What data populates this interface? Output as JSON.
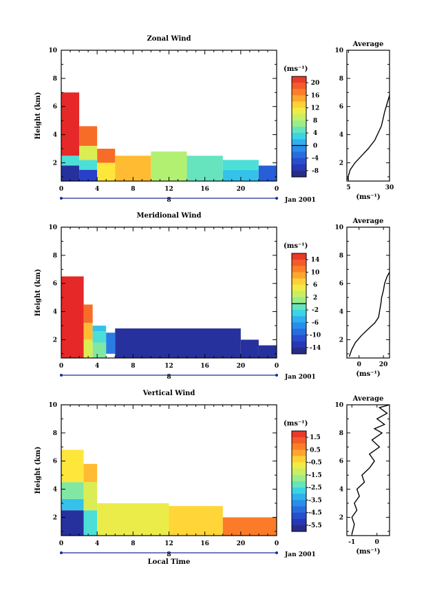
{
  "chart_data": [
    {
      "type": "heatmap",
      "title": "Zonal Wind",
      "ylabel": "Height (km)",
      "xlabel": "",
      "xlim": [
        0,
        24
      ],
      "ylim": [
        0.7,
        10
      ],
      "xticks": [
        "0",
        "4",
        "8",
        "12",
        "16",
        "20",
        "0"
      ],
      "yticks": [
        "2",
        "4",
        "6",
        "8",
        "10"
      ],
      "date_tick": "8",
      "date_label": "Jan 2001",
      "colorbar": {
        "unit": "(ms⁻¹)",
        "ticks": [
          "20",
          "16",
          "12",
          "8",
          "4",
          "0",
          "-4",
          "-8"
        ],
        "min": -10,
        "max": 22,
        "contour": 0
      },
      "field": {
        "segments": [
          {
            "t0": 0,
            "t1": 2,
            "bands": [
              [
                0.7,
                1.8,
                -8
              ],
              [
                1.8,
                2.5,
                4
              ],
              [
                2.5,
                7.0,
                22
              ]
            ]
          },
          {
            "t0": 2,
            "t1": 4,
            "bands": [
              [
                0.7,
                1.5,
                -6
              ],
              [
                1.5,
                2.2,
                4
              ],
              [
                2.2,
                3.2,
                10
              ],
              [
                3.2,
                4.6,
                18
              ]
            ]
          },
          {
            "t0": 4,
            "t1": 6,
            "bands": [
              [
                0.7,
                2.0,
                12
              ],
              [
                2.0,
                3.0,
                18
              ]
            ]
          },
          {
            "t0": 6,
            "t1": 10,
            "bands": [
              [
                0.7,
                2.5,
                14
              ]
            ]
          },
          {
            "t0": 10,
            "t1": 14,
            "bands": [
              [
                0.7,
                2.8,
                8
              ]
            ]
          },
          {
            "t0": 14,
            "t1": 18,
            "bands": [
              [
                0.7,
                2.5,
                5
              ]
            ]
          },
          {
            "t0": 18,
            "t1": 22,
            "bands": [
              [
                0.7,
                1.5,
                2
              ],
              [
                1.5,
                2.2,
                4
              ]
            ]
          },
          {
            "t0": 22,
            "t1": 24,
            "bands": [
              [
                0.7,
                1.8,
                -4
              ]
            ]
          }
        ]
      },
      "average": {
        "title": "Average",
        "xlim": [
          4,
          30
        ],
        "xticks": [
          "5",
          "30"
        ],
        "xlabel": "(ms⁻¹)",
        "yticks": [
          "2",
          "4",
          "6",
          "8",
          "10"
        ],
        "profile": [
          [
            4.5,
            0.8
          ],
          [
            5.0,
            1.1
          ],
          [
            6.0,
            1.5
          ],
          [
            9.0,
            2.0
          ],
          [
            13.0,
            2.5
          ],
          [
            17.0,
            3.0
          ],
          [
            21.0,
            3.6
          ],
          [
            23.0,
            4.1
          ],
          [
            25.0,
            4.6
          ],
          [
            26.0,
            5.1
          ],
          [
            27.0,
            5.6
          ],
          [
            28.0,
            6.0
          ],
          [
            29.0,
            6.4
          ],
          [
            30.0,
            6.8
          ]
        ]
      }
    },
    {
      "type": "heatmap",
      "title": "Meridional Wind",
      "ylabel": "Height (km)",
      "xlabel": "",
      "xlim": [
        0,
        24
      ],
      "ylim": [
        0.7,
        10
      ],
      "xticks": [
        "0",
        "4",
        "8",
        "12",
        "16",
        "20",
        "0"
      ],
      "yticks": [
        "2",
        "4",
        "6",
        "8",
        "10"
      ],
      "date_tick": "8",
      "date_label": "Jan 2001",
      "colorbar": {
        "unit": "(ms⁻¹)",
        "ticks": [
          "14",
          "10",
          "6",
          "2",
          "-2",
          "-6",
          "-10",
          "-14"
        ],
        "min": -16,
        "max": 16,
        "contour": 0
      },
      "field": {
        "segments": [
          {
            "t0": 0,
            "t1": 2.5,
            "bands": [
              [
                0.7,
                6.5,
                16
              ]
            ]
          },
          {
            "t0": 2.5,
            "t1": 3.5,
            "bands": [
              [
                0.7,
                2.0,
                4
              ],
              [
                2.0,
                3.2,
                8
              ],
              [
                3.2,
                4.5,
                12
              ]
            ]
          },
          {
            "t0": 3.5,
            "t1": 5,
            "bands": [
              [
                0.7,
                1.8,
                0
              ],
              [
                1.8,
                2.6,
                -2
              ],
              [
                2.6,
                3.0,
                -4
              ]
            ]
          },
          {
            "t0": 5,
            "t1": 6,
            "bands": [
              [
                1.0,
                2.5,
                -8
              ]
            ]
          },
          {
            "t0": 6,
            "t1": 20,
            "bands": [
              [
                0.7,
                2.8,
                -14
              ]
            ]
          },
          {
            "t0": 20,
            "t1": 22,
            "bands": [
              [
                0.7,
                2.0,
                -14
              ]
            ]
          },
          {
            "t0": 22,
            "t1": 24,
            "bands": [
              [
                0.7,
                1.6,
                -14
              ]
            ]
          }
        ]
      },
      "average": {
        "title": "Average",
        "xlim": [
          -10,
          25
        ],
        "xticks": [
          "0",
          "20"
        ],
        "xlabel": "(ms⁻¹)",
        "yticks": [
          "2",
          "4",
          "6",
          "8",
          "10"
        ],
        "profile": [
          [
            -8,
            0.8
          ],
          [
            -6,
            1.3
          ],
          [
            -3,
            1.8
          ],
          [
            2,
            2.3
          ],
          [
            8,
            2.8
          ],
          [
            13,
            3.2
          ],
          [
            16,
            3.6
          ],
          [
            17,
            4.1
          ],
          [
            18,
            4.6
          ],
          [
            18.5,
            5.0
          ],
          [
            20,
            5.5
          ],
          [
            21,
            6.0
          ],
          [
            23,
            6.5
          ],
          [
            25,
            6.8
          ]
        ]
      }
    },
    {
      "type": "heatmap",
      "title": "Vertical Wind",
      "ylabel": "Height (km)",
      "xlabel": "Local Time",
      "xlim": [
        0,
        24
      ],
      "ylim": [
        0.7,
        10
      ],
      "xticks": [
        "0",
        "4",
        "8",
        "12",
        "16",
        "20",
        "0"
      ],
      "yticks": [
        "2",
        "4",
        "6",
        "8",
        "10"
      ],
      "date_tick": "8",
      "date_label": "Jan 2001",
      "colorbar": {
        "unit": "(ms⁻¹)",
        "ticks": [
          "1.5",
          "0.5",
          "-0.5",
          "-1.5",
          "-2.5",
          "-3.5",
          "-4.5",
          "-5.5"
        ],
        "min": -6,
        "max": 2,
        "contour": null
      },
      "field": {
        "segments": [
          {
            "t0": 0,
            "t1": 2.5,
            "bands": [
              [
                0.7,
                2.5,
                -5.5
              ],
              [
                2.5,
                3.3,
                -3.0
              ],
              [
                3.3,
                4.5,
                -2.0
              ],
              [
                4.5,
                6.8,
                -0.5
              ]
            ]
          },
          {
            "t0": 2.5,
            "t1": 4,
            "bands": [
              [
                0.7,
                2.5,
                -2.5
              ],
              [
                2.5,
                4.5,
                -1.0
              ],
              [
                4.5,
                5.8,
                0.0
              ]
            ]
          },
          {
            "t0": 4,
            "t1": 12,
            "bands": [
              [
                0.7,
                3.0,
                -0.8
              ]
            ]
          },
          {
            "t0": 12,
            "t1": 18,
            "bands": [
              [
                0.7,
                2.8,
                -0.3
              ]
            ]
          },
          {
            "t0": 18,
            "t1": 24,
            "bands": [
              [
                0.7,
                2.0,
                0.8
              ]
            ]
          }
        ]
      },
      "average": {
        "title": "Average",
        "xlim": [
          -1.2,
          0.5
        ],
        "xticks": [
          "-1",
          "0"
        ],
        "xlabel": "(ms⁻¹)",
        "yticks": [
          "2",
          "4",
          "6",
          "8",
          "10"
        ],
        "profile": [
          [
            -1.0,
            0.8
          ],
          [
            -0.9,
            1.5
          ],
          [
            -1.0,
            2.0
          ],
          [
            -0.8,
            2.5
          ],
          [
            -0.9,
            3.0
          ],
          [
            -0.7,
            3.5
          ],
          [
            -0.8,
            4.0
          ],
          [
            -0.5,
            4.5
          ],
          [
            -0.6,
            5.0
          ],
          [
            -0.3,
            5.5
          ],
          [
            -0.1,
            6.0
          ],
          [
            -0.3,
            6.5
          ],
          [
            0.1,
            7.0
          ],
          [
            -0.2,
            7.5
          ],
          [
            0.2,
            8.0
          ],
          [
            -0.1,
            8.3
          ],
          [
            0.3,
            8.6
          ],
          [
            0.0,
            9.0
          ],
          [
            0.4,
            9.4
          ],
          [
            0.1,
            9.8
          ],
          [
            0.5,
            10.0
          ]
        ]
      }
    }
  ]
}
